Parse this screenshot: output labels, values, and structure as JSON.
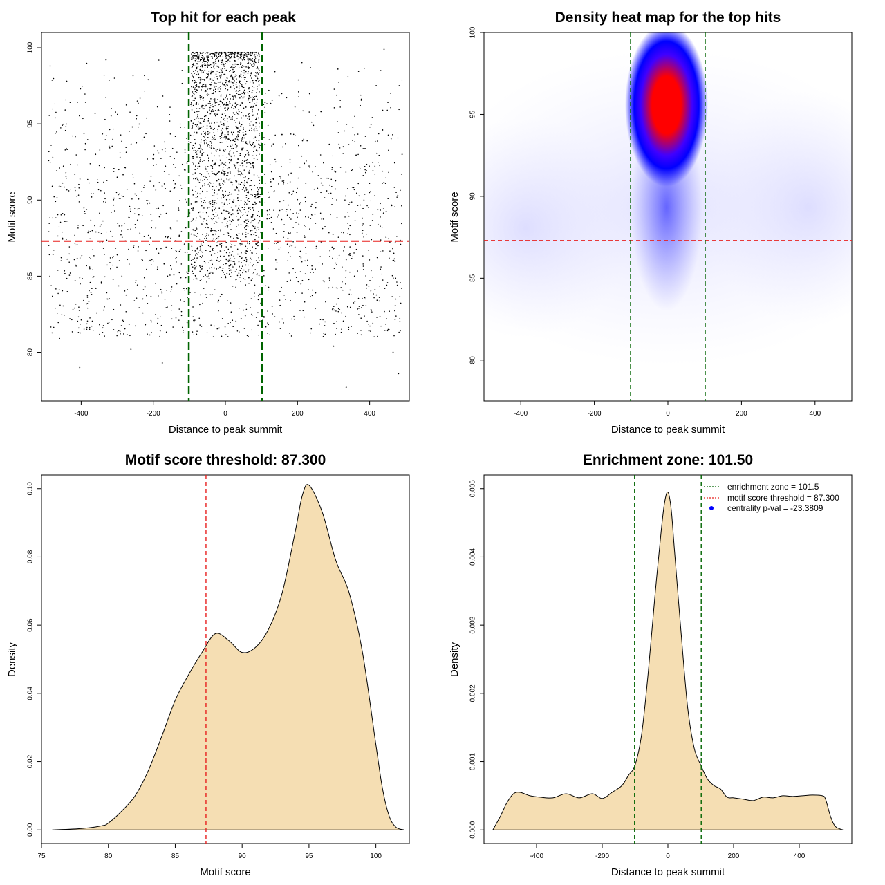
{
  "colors": {
    "threshold_line": "#e8201f",
    "zone_line": "#006400",
    "density_fill": "#f5deb3",
    "points": "#000000",
    "heat_low": "#ffffff",
    "heat_mid": "#0000ff",
    "heat_high": "#ff0000",
    "pval_marker": "#0000ff"
  },
  "chart_data": [
    {
      "type": "scatter",
      "title": "Top hit for each peak",
      "xlabel": "Distance to peak summit",
      "ylabel": "Motif score",
      "xlim": [
        -510,
        510
      ],
      "ylim": [
        76.8,
        101
      ],
      "xticks": [
        -400,
        -200,
        0,
        200,
        400
      ],
      "yticks": [
        80,
        85,
        90,
        95,
        100
      ],
      "threshold_score": 87.3,
      "zone_bounds": [
        -101.5,
        101.5
      ],
      "points": [
        [
          -486,
          98.8
        ],
        [
          -472,
          95.4
        ],
        [
          -460,
          92.1
        ],
        [
          -445,
          88.6
        ],
        [
          -430,
          85.2
        ],
        [
          -418,
          82.9
        ],
        [
          -402,
          97.3
        ],
        [
          -388,
          93.7
        ],
        [
          -371,
          90.2
        ],
        [
          -359,
          87.9
        ],
        [
          -344,
          84.6
        ],
        [
          -331,
          99.2
        ],
        [
          -316,
          96.0
        ],
        [
          -300,
          91.5
        ],
        [
          -287,
          88.3
        ],
        [
          -272,
          86.1
        ],
        [
          -258,
          94.8
        ],
        [
          -243,
          89.4
        ],
        [
          -229,
          83.5
        ],
        [
          -214,
          97.9
        ],
        [
          -199,
          92.7
        ],
        [
          -183,
          88.9
        ],
        [
          -170,
          85.8
        ],
        [
          -155,
          95.6
        ],
        [
          -141,
          90.8
        ],
        [
          -128,
          87.6
        ],
        [
          -112,
          93.1
        ],
        [
          -460,
          80.9
        ],
        [
          -404,
          79.0
        ],
        [
          -340,
          81.6
        ],
        [
          -262,
          80.2
        ],
        [
          -175,
          79.3
        ],
        [
          -480,
          90.9
        ],
        [
          -440,
          97.8
        ],
        [
          -360,
          93.0
        ],
        [
          -300,
          86.4
        ],
        [
          -210,
          89.8
        ],
        [
          -150,
          84.1
        ],
        [
          -120,
          98.5
        ],
        [
          -95,
          95.2
        ],
        [
          -88,
          91.4
        ],
        [
          -80,
          97.6
        ],
        [
          -74,
          99.3
        ],
        [
          -68,
          93.8
        ],
        [
          -61,
          96.7
        ],
        [
          -55,
          88.2
        ],
        [
          -49,
          98.1
        ],
        [
          -43,
          94.4
        ],
        [
          -37,
          97.0
        ],
        [
          -31,
          90.5
        ],
        [
          -26,
          99.6
        ],
        [
          -20,
          95.9
        ],
        [
          -14,
          92.6
        ],
        [
          -9,
          98.4
        ],
        [
          -3,
          96.3
        ],
        [
          3,
          99.1
        ],
        [
          8,
          94.0
        ],
        [
          13,
          97.4
        ],
        [
          19,
          89.1
        ],
        [
          24,
          98.8
        ],
        [
          29,
          95.1
        ],
        [
          35,
          91.9
        ],
        [
          40,
          97.8
        ],
        [
          46,
          93.3
        ],
        [
          51,
          99.4
        ],
        [
          57,
          96.1
        ],
        [
          62,
          88.7
        ],
        [
          68,
          94.9
        ],
        [
          73,
          98.0
        ],
        [
          79,
          92.2
        ],
        [
          85,
          96.8
        ],
        [
          90,
          87.0
        ],
        [
          96,
          93.6
        ],
        [
          -85,
          85.9
        ],
        [
          -60,
          84.2
        ],
        [
          -35,
          86.7
        ],
        [
          -10,
          83.8
        ],
        [
          15,
          85.4
        ],
        [
          40,
          86.3
        ],
        [
          65,
          84.9
        ],
        [
          90,
          82.6
        ],
        [
          -50,
          91.0
        ],
        [
          0,
          90.3
        ],
        [
          50,
          90.8
        ],
        [
          -25,
          93.2
        ],
        [
          25,
          92.9
        ],
        [
          110,
          96.4
        ],
        [
          126,
          91.2
        ],
        [
          141,
          87.8
        ],
        [
          157,
          94.3
        ],
        [
          172,
          89.0
        ],
        [
          188,
          85.5
        ],
        [
          203,
          97.1
        ],
        [
          219,
          92.4
        ],
        [
          234,
          88.1
        ],
        [
          250,
          83.9
        ],
        [
          265,
          95.8
        ],
        [
          281,
          90.6
        ],
        [
          296,
          86.9
        ],
        [
          312,
          98.6
        ],
        [
          327,
          93.5
        ],
        [
          343,
          89.7
        ],
        [
          358,
          85.0
        ],
        [
          374,
          96.2
        ],
        [
          389,
          91.8
        ],
        [
          405,
          87.4
        ],
        [
          420,
          82.3
        ],
        [
          436,
          94.6
        ],
        [
          451,
          90.1
        ],
        [
          467,
          86.5
        ],
        [
          482,
          97.5
        ],
        [
          490,
          93.0
        ],
        [
          300,
          80.4
        ],
        [
          335,
          77.7
        ],
        [
          398,
          81.4
        ],
        [
          465,
          80.0
        ],
        [
          480,
          78.6
        ],
        [
          150,
          82.0
        ],
        [
          440,
          99.9
        ],
        [
          380,
          88.8
        ]
      ]
    },
    {
      "type": "heatmap",
      "title": "Density heat map for the top hits",
      "xlabel": "Distance to peak summit",
      "ylabel": "Motif score",
      "xlim": [
        -500,
        500
      ],
      "ylim": [
        77.5,
        100
      ],
      "xticks": [
        -400,
        -200,
        0,
        200,
        400
      ],
      "yticks": [
        80,
        85,
        90,
        95,
        100
      ],
      "threshold_score": 87.3,
      "zone_bounds": [
        -101.5,
        101.5
      ],
      "peak_location": [
        0,
        95.5
      ],
      "colorscale": [
        "white",
        "blue",
        "red"
      ]
    },
    {
      "type": "area",
      "title": "Motif score threshold: 87.300",
      "xlabel": "Motif score",
      "ylabel": "Density",
      "xlim": [
        75,
        102.5
      ],
      "ylim": [
        -0.004,
        0.104
      ],
      "xticks": [
        75,
        80,
        85,
        90,
        95,
        100
      ],
      "yticks": [
        0.0,
        0.02,
        0.04,
        0.06,
        0.08,
        0.1
      ],
      "ytick_labels": [
        "0.00",
        "0.02",
        "0.04",
        "0.06",
        "0.08",
        "0.10"
      ],
      "threshold_score": 87.3,
      "x": [
        75.8,
        78,
        79.5,
        80,
        81,
        82,
        83,
        84,
        85,
        86,
        87,
        88,
        89,
        90,
        91,
        92,
        93,
        94,
        94.5,
        95,
        96,
        97,
        98,
        99,
        100,
        100.5,
        101,
        101.5,
        102.1
      ],
      "y": [
        0.0,
        0.0004,
        0.0012,
        0.002,
        0.0055,
        0.01,
        0.0175,
        0.0275,
        0.038,
        0.0455,
        0.052,
        0.0575,
        0.0555,
        0.052,
        0.0535,
        0.059,
        0.0695,
        0.088,
        0.098,
        0.101,
        0.093,
        0.079,
        0.0695,
        0.052,
        0.025,
        0.012,
        0.004,
        0.0008,
        0.0
      ]
    },
    {
      "type": "area",
      "title": "Enrichment zone: 101.50",
      "xlabel": "Distance to peak summit",
      "ylabel": "Density",
      "xlim": [
        -560,
        560
      ],
      "ylim": [
        -0.0002,
        0.0052
      ],
      "xticks": [
        -400,
        -200,
        0,
        200,
        400
      ],
      "yticks": [
        0.0,
        0.001,
        0.002,
        0.003,
        0.004,
        0.005
      ],
      "ytick_labels": [
        "0.000",
        "0.001",
        "0.002",
        "0.003",
        "0.004",
        "0.005"
      ],
      "zone_bounds": [
        -101.5,
        101.5
      ],
      "x": [
        -533,
        -510,
        -490,
        -470,
        -450,
        -420,
        -390,
        -350,
        -310,
        -270,
        -230,
        -200,
        -170,
        -140,
        -120,
        -100,
        -80,
        -60,
        -40,
        -20,
        -10,
        0,
        10,
        20,
        40,
        60,
        80,
        100,
        120,
        140,
        160,
        180,
        200,
        230,
        260,
        290,
        320,
        350,
        380,
        410,
        440,
        470,
        480,
        495,
        510,
        533
      ],
      "y": [
        0.0,
        0.0002,
        0.0004,
        0.00053,
        0.00055,
        0.0005,
        0.00048,
        0.00047,
        0.00053,
        0.00047,
        0.00053,
        0.00046,
        0.00055,
        0.00065,
        0.0008,
        0.00095,
        0.0014,
        0.0023,
        0.0034,
        0.0044,
        0.0048,
        0.00495,
        0.0047,
        0.0041,
        0.0029,
        0.0018,
        0.0012,
        0.00095,
        0.00075,
        0.00065,
        0.0006,
        0.00048,
        0.00047,
        0.00045,
        0.00043,
        0.00048,
        0.00047,
        0.0005,
        0.00049,
        0.0005,
        0.00051,
        0.0005,
        0.00045,
        0.0002,
        5e-05,
        0.0
      ]
    }
  ],
  "legend": {
    "zone_label": "enrichment zone = 101.5",
    "threshold_label": "motif score threshold = 87.300",
    "pval_label": "centrality p-val = -23.3809"
  }
}
